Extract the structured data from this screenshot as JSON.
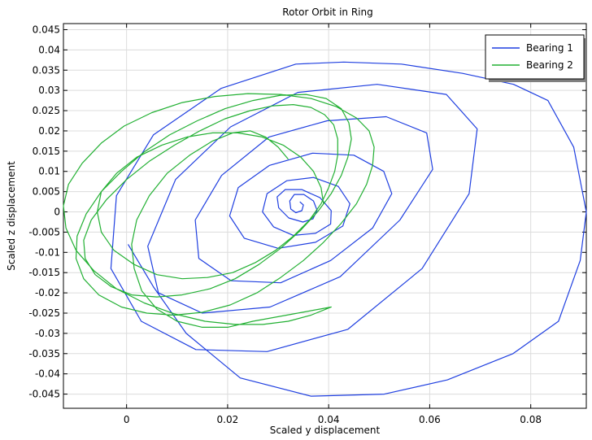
{
  "chart_data": {
    "type": "line",
    "title": "Rotor Orbit in Ring",
    "xlabel": "Scaled y displacement",
    "ylabel": "Scaled z displacement",
    "xlim": [
      -0.0125,
      0.091
    ],
    "ylim": [
      -0.0485,
      0.0465
    ],
    "xticks": [
      0,
      0.02,
      0.04,
      0.06,
      0.08
    ],
    "xtick_labels": [
      "0",
      "0.02",
      "0.04",
      "0.06",
      "0.08"
    ],
    "yticks": [
      0.045,
      0.04,
      0.035,
      0.03,
      0.025,
      0.02,
      0.015,
      0.01,
      0.005,
      0,
      -0.005,
      -0.01,
      -0.015,
      -0.02,
      -0.025,
      -0.03,
      -0.035,
      -0.04,
      -0.045
    ],
    "ytick_labels": [
      "0.045",
      "0.04",
      "0.035",
      "0.03",
      "0.025",
      "0.02",
      "0.015",
      "0.01",
      "0.005",
      "0",
      "-0.005",
      "-0.01",
      "-0.015",
      "-0.02",
      "-0.025",
      "-0.03",
      "-0.035",
      "-0.04",
      "-0.045"
    ],
    "grid": true,
    "legend_position": "top-right",
    "series": [
      {
        "name": "Bearing 1",
        "color": "#1f3fe0",
        "x": [
          0.0343,
          0.035,
          0.0347,
          0.0335,
          0.0325,
          0.0323,
          0.0332,
          0.0351,
          0.037,
          0.0377,
          0.0369,
          0.0349,
          0.0321,
          0.0301,
          0.0298,
          0.0314,
          0.0347,
          0.0383,
          0.0405,
          0.0404,
          0.0374,
          0.033,
          0.0291,
          0.0269,
          0.0278,
          0.0317,
          0.037,
          0.0419,
          0.0442,
          0.0428,
          0.0374,
          0.03,
          0.0233,
          0.0204,
          0.0221,
          0.0283,
          0.0368,
          0.045,
          0.0509,
          0.0525,
          0.0487,
          0.0404,
          0.0305,
          0.0207,
          0.0143,
          0.0136,
          0.0188,
          0.0282,
          0.0397,
          0.0514,
          0.0594,
          0.0606,
          0.0541,
          0.0423,
          0.0284,
          0.015,
          0.0063,
          0.0042,
          0.0097,
          0.0206,
          0.0339,
          0.0496,
          0.0633,
          0.0694,
          0.0678,
          0.0585,
          0.0438,
          0.0278,
          0.0137,
          0.0029,
          -0.0031,
          -0.002,
          0.0053,
          0.0187,
          0.0335,
          0.043,
          0.0544,
          0.0665,
          0.0766,
          0.0834,
          0.0885,
          0.091,
          0.0898,
          0.0855,
          0.0765,
          0.0635,
          0.051,
          0.0365,
          0.0225,
          0.0118,
          0.0053,
          0.0003
        ],
        "y": [
          0.0025,
          0.0017,
          0.0003,
          -0.0002,
          0.0007,
          0.0027,
          0.0043,
          0.0043,
          0.0027,
          0.0004,
          -0.0017,
          -0.0025,
          -0.0015,
          0.001,
          0.0037,
          0.0055,
          0.0055,
          0.0035,
          0.0003,
          -0.003,
          -0.0053,
          -0.0058,
          -0.0037,
          0.0,
          0.0045,
          0.0077,
          0.0085,
          0.0063,
          0.002,
          -0.0035,
          -0.0075,
          -0.009,
          -0.0065,
          -0.001,
          0.006,
          0.0115,
          0.0145,
          0.014,
          0.01,
          0.0045,
          -0.004,
          -0.012,
          -0.0175,
          -0.017,
          -0.0115,
          -0.002,
          0.009,
          0.0185,
          0.0225,
          0.0235,
          0.0195,
          0.0105,
          -0.002,
          -0.016,
          -0.0235,
          -0.025,
          -0.02,
          -0.0085,
          0.008,
          0.021,
          0.0295,
          0.0315,
          0.029,
          0.0205,
          0.0045,
          -0.014,
          -0.029,
          -0.0345,
          -0.034,
          -0.027,
          -0.014,
          0.004,
          0.019,
          0.0305,
          0.0365,
          0.037,
          0.0365,
          0.0342,
          0.0315,
          0.0275,
          0.016,
          0.0,
          -0.012,
          -0.027,
          -0.035,
          -0.0415,
          -0.045,
          -0.0455,
          -0.041,
          -0.03,
          -0.0185,
          -0.008
        ]
      },
      {
        "name": "Bearing 2",
        "color": "#22b033",
        "x": [
          0.039,
          0.0385,
          0.037,
          0.0345,
          0.031,
          0.0268,
          0.022,
          0.017,
          0.012,
          0.007,
          0.002,
          -0.002,
          -0.005,
          -0.0058,
          -0.005,
          -0.0025,
          0.0015,
          0.006,
          0.011,
          0.016,
          0.021,
          0.0255,
          0.0295,
          0.033,
          0.0362,
          0.0385,
          0.04,
          0.0412,
          0.0418,
          0.0418,
          0.041,
          0.0392,
          0.0365,
          0.033,
          0.029,
          0.0245,
          0.0195,
          0.0145,
          0.0095,
          0.0045,
          0.0,
          -0.004,
          -0.007,
          -0.0085,
          -0.0082,
          -0.0062,
          -0.003,
          0.001,
          0.006,
          0.011,
          0.0165,
          0.0215,
          0.0262,
          0.0305,
          0.0345,
          0.0378,
          0.0405,
          0.0425,
          0.0438,
          0.0445,
          0.044,
          0.0425,
          0.0395,
          0.0355,
          0.0305,
          0.025,
          0.0195,
          0.014,
          0.0085,
          0.0035,
          -0.001,
          -0.005,
          -0.008,
          -0.0098,
          -0.01,
          -0.0085,
          -0.0055,
          -0.001,
          0.004,
          0.0095,
          0.015,
          0.0205,
          0.0258,
          0.0305,
          0.035,
          0.039,
          0.0425,
          0.0455,
          0.0475,
          0.0487,
          0.049,
          0.048,
          0.0455,
          0.0415,
          0.0365,
          0.0305,
          0.024,
          0.0175,
          0.011,
          0.005,
          -0.0005,
          -0.005,
          -0.0088,
          -0.0115,
          -0.0125,
          -0.012,
          -0.01,
          -0.0065,
          -0.002,
          0.0035,
          0.0095,
          0.0155,
          0.0215,
          0.027,
          0.032,
          0.0365,
          0.0405,
          0.025,
          0.02,
          0.015,
          0.01,
          0.006,
          0.003,
          0.0015,
          0.001,
          0.002,
          0.0045,
          0.008,
          0.0125,
          0.017,
          0.021,
          0.0245,
          0.0275,
          0.03,
          0.032
        ],
        "y": [
          0.002,
          0.006,
          0.01,
          0.0135,
          0.0165,
          0.0185,
          0.0195,
          0.0195,
          0.0185,
          0.0165,
          0.0135,
          0.0095,
          0.005,
          0.0,
          -0.005,
          -0.0095,
          -0.013,
          -0.0155,
          -0.0165,
          -0.0162,
          -0.015,
          -0.0125,
          -0.0095,
          -0.006,
          -0.002,
          0.002,
          0.006,
          0.01,
          0.014,
          0.018,
          0.0215,
          0.024,
          0.0258,
          0.0265,
          0.0262,
          0.025,
          0.023,
          0.02,
          0.0165,
          0.0125,
          0.008,
          0.003,
          -0.002,
          -0.007,
          -0.0115,
          -0.0155,
          -0.0185,
          -0.0205,
          -0.021,
          -0.0205,
          -0.019,
          -0.0165,
          -0.013,
          -0.009,
          -0.0045,
          0.0,
          0.0045,
          0.009,
          0.0135,
          0.018,
          0.022,
          0.0255,
          0.028,
          0.029,
          0.0288,
          0.0275,
          0.0255,
          0.0225,
          0.019,
          0.0148,
          0.01,
          0.005,
          -0.0005,
          -0.006,
          -0.0115,
          -0.0165,
          -0.0205,
          -0.0235,
          -0.025,
          -0.0255,
          -0.0248,
          -0.023,
          -0.02,
          -0.0162,
          -0.012,
          -0.0075,
          -0.0028,
          0.002,
          0.0068,
          0.0115,
          0.016,
          0.02,
          0.0232,
          0.026,
          0.028,
          0.029,
          0.0292,
          0.0285,
          0.027,
          0.0245,
          0.0212,
          0.017,
          0.012,
          0.0068,
          0.0015,
          -0.004,
          -0.0095,
          -0.0145,
          -0.019,
          -0.0225,
          -0.0252,
          -0.027,
          -0.0278,
          -0.0278,
          -0.027,
          -0.0255,
          -0.0235,
          -0.027,
          -0.0285,
          -0.0285,
          -0.027,
          -0.024,
          -0.0195,
          -0.014,
          -0.008,
          -0.002,
          0.004,
          0.0095,
          0.014,
          0.0175,
          0.0195,
          0.02,
          0.0185,
          0.016,
          0.013
        ]
      }
    ]
  }
}
